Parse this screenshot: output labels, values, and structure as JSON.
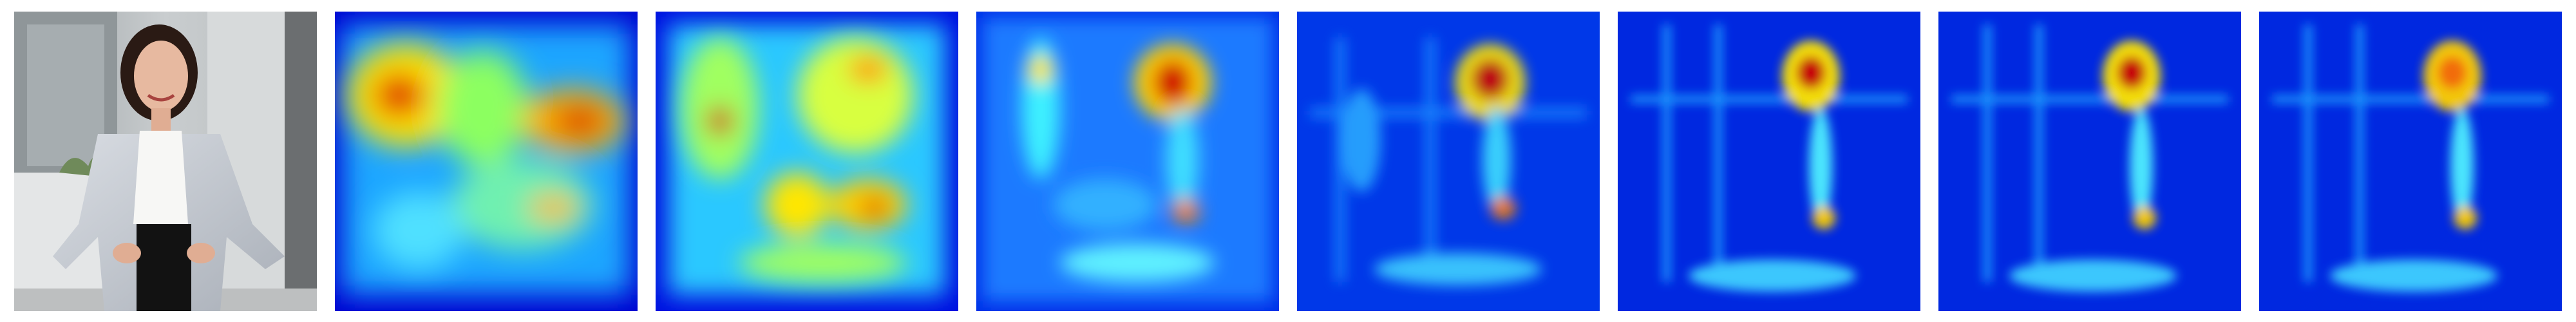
{
  "figure": {
    "panels": [
      {
        "kind": "photo",
        "subject": "woman-in-office"
      },
      {
        "kind": "heatmap",
        "colormap": "jet"
      },
      {
        "kind": "heatmap",
        "colormap": "jet"
      },
      {
        "kind": "heatmap",
        "colormap": "jet"
      },
      {
        "kind": "heatmap",
        "colormap": "jet"
      },
      {
        "kind": "heatmap",
        "colormap": "jet"
      },
      {
        "kind": "heatmap",
        "colormap": "jet"
      },
      {
        "kind": "heatmap",
        "colormap": "jet"
      }
    ],
    "colors": {
      "background": "#ffffff",
      "jet_low": "#0000d0",
      "jet_mid": "#2fd8ff",
      "jet_warm": "#ffe600",
      "jet_high": "#d10000"
    }
  }
}
